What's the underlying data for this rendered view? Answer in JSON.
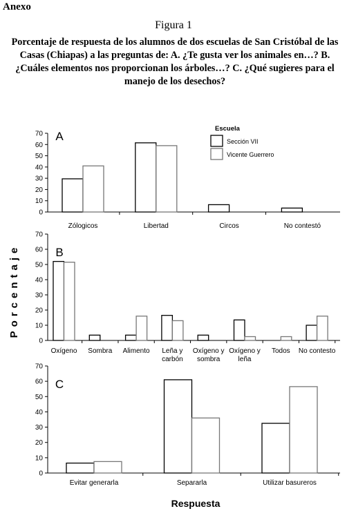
{
  "header": {
    "annex": "Anexo",
    "figure": "Figura 1",
    "caption": "Porcentaje de respuesta de los alumnos de dos escuelas de San Cristóbal de las Casas (Chiapas) a las preguntas de: A. ¿Te gusta ver los animales en…? B. ¿Cuáles elementos nos proporcionan los árboles…? C. ¿Qué sugieres para el manejo de los desechos?"
  },
  "ylabel": "Porcentaje",
  "xlabel": "Respuesta",
  "legend": {
    "title": "Escuela",
    "items": [
      "Sección VII",
      "Vicente Guerrero"
    ]
  },
  "colors": {
    "bar_fill": "#ffffff",
    "series_1_stroke": "#000000",
    "series_2_stroke": "#777777"
  },
  "chart_data": [
    {
      "type": "bar",
      "panel": "A",
      "categories": [
        "Zólogicos",
        "Libertad",
        "Circos",
        "No contestó"
      ],
      "series": [
        {
          "name": "Sección VII",
          "values": [
            29.5,
            61.5,
            6.5,
            3.5
          ]
        },
        {
          "name": "Vicente Guerrero",
          "values": [
            41,
            59,
            0,
            0
          ]
        }
      ],
      "ylim": [
        0,
        70
      ],
      "yticks": [
        0,
        10,
        20,
        30,
        40,
        50,
        60,
        70
      ],
      "legend_position": "top-right"
    },
    {
      "type": "bar",
      "panel": "B",
      "categories": [
        "Oxígeno",
        "Sombra",
        "Alimento",
        "Leña y carbón",
        "Oxígeno y sombra",
        "Oxígeno y leña",
        "Todos",
        "No contesto"
      ],
      "series": [
        {
          "name": "Sección VII",
          "values": [
            52,
            3.5,
            3.5,
            16.5,
            3.5,
            13.5,
            0,
            10
          ]
        },
        {
          "name": "Vicente Guerrero",
          "values": [
            51.5,
            0,
            16,
            13,
            0,
            2.5,
            2.5,
            16
          ]
        }
      ],
      "ylim": [
        0,
        70
      ],
      "yticks": [
        0,
        10,
        20,
        30,
        40,
        50,
        60,
        70
      ]
    },
    {
      "type": "bar",
      "panel": "C",
      "categories": [
        "Evitar generarla",
        "Separarla",
        "Utilizar basureros"
      ],
      "series": [
        {
          "name": "Sección VII",
          "values": [
            6.5,
            61,
            32.5
          ]
        },
        {
          "name": "Vicente Guerrero",
          "values": [
            7.5,
            36,
            56.5
          ]
        }
      ],
      "ylim": [
        0,
        70
      ],
      "yticks": [
        0,
        10,
        20,
        30,
        40,
        50,
        60,
        70
      ]
    }
  ]
}
